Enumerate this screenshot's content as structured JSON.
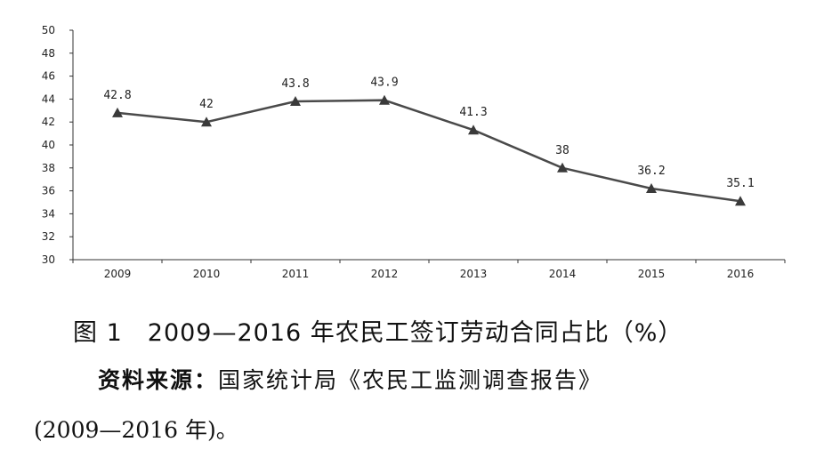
{
  "chart_data": {
    "type": "line",
    "categories": [
      "2009",
      "2010",
      "2011",
      "2012",
      "2013",
      "2014",
      "2015",
      "2016"
    ],
    "series": [
      {
        "values": [
          42.8,
          42,
          43.8,
          43.9,
          41.3,
          38,
          36.2,
          35.1
        ]
      }
    ],
    "data_labels": [
      "42.8",
      "42",
      "43.8",
      "43.9",
      "41.3",
      "38",
      "36.2",
      "35.1"
    ],
    "ylim": [
      30,
      50
    ],
    "yticks": [
      "30",
      "32",
      "34",
      "36",
      "38",
      "40",
      "42",
      "44",
      "46",
      "48",
      "50"
    ],
    "marker": "triangle",
    "line_color": "#4a4a4a",
    "grid": false
  },
  "caption": "图 1　2009—2016 年农民工签订劳动合同占比（%）",
  "source": {
    "label": "资料来源：",
    "text": "国家统计局《农民工监测调查报告》",
    "text2": "(2009—2016 年)。"
  }
}
